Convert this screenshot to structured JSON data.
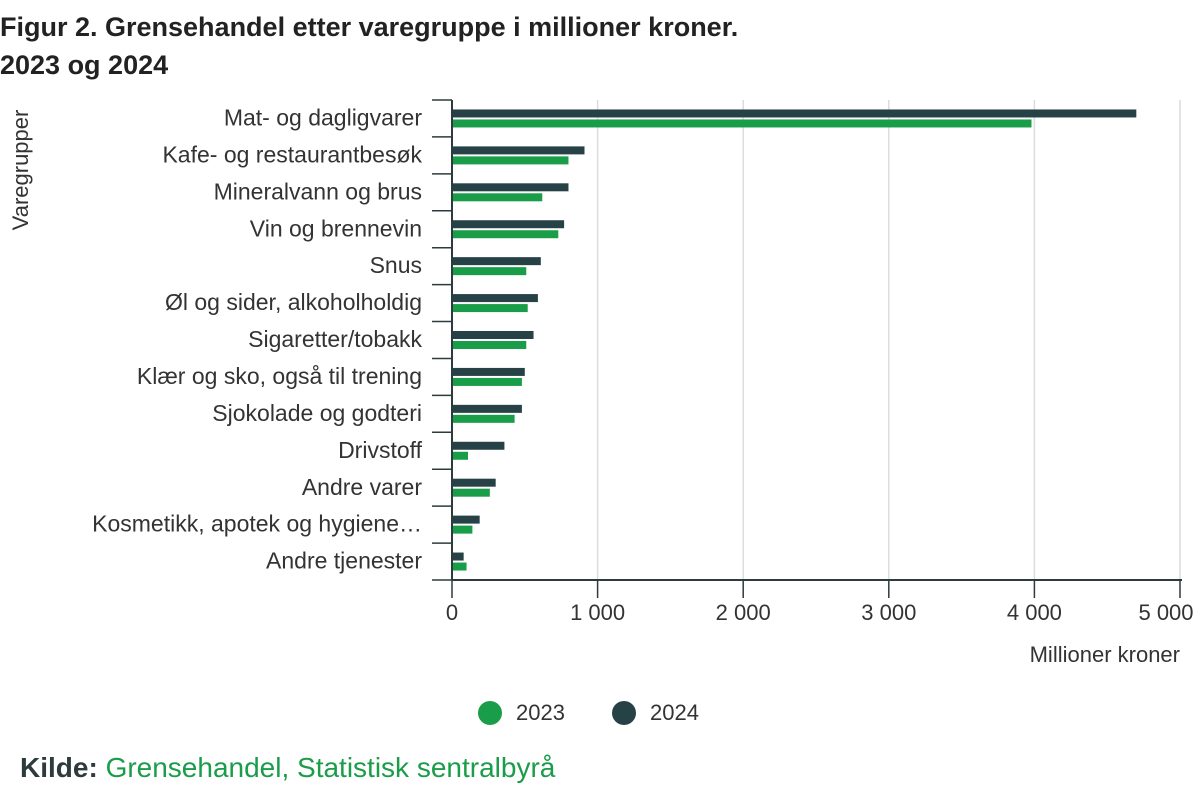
{
  "title": {
    "line1": "Figur 2. Grensehandel etter varegruppe i millioner kroner.",
    "line2": "2023 og 2024"
  },
  "colors": {
    "y2023": "#1a9d49",
    "y2024": "#274247",
    "grid": "#dcdcdc",
    "axis": "#2d3b3d"
  },
  "source": {
    "label": "Kilde:",
    "link_text": "Grensehandel, Statistisk sentralbyrå"
  },
  "chart_data": {
    "type": "bar",
    "orientation": "horizontal",
    "ylabel": "Varegrupper",
    "xlabel": "Millioner kroner",
    "xlim": [
      0,
      5000
    ],
    "xticks": [
      0,
      1000,
      2000,
      3000,
      4000,
      5000
    ],
    "xtick_labels": [
      "0",
      "1 000",
      "2 000",
      "3 000",
      "4 000",
      "5 000"
    ],
    "grid": true,
    "legend": "bottom-center",
    "categories": [
      "Mat- og dagligvarer",
      "Kafe- og restaurantbesøk",
      "Mineralvann og brus",
      "Vin og brennevin",
      "Snus",
      "Øl og sider, alkoholholdig",
      "Sigaretter/tobakk",
      "Klær og sko, også til trening",
      "Sjokolade og godteri",
      "Drivstoff",
      "Andre varer",
      "Kosmetikk, apotek og hygiene…",
      "Andre tjenester"
    ],
    "series": [
      {
        "name": "2023",
        "values": [
          3980,
          800,
          620,
          730,
          510,
          520,
          510,
          480,
          430,
          110,
          260,
          140,
          100
        ]
      },
      {
        "name": "2024",
        "values": [
          4700,
          910,
          800,
          770,
          610,
          590,
          560,
          500,
          480,
          360,
          300,
          190,
          80
        ]
      }
    ]
  }
}
